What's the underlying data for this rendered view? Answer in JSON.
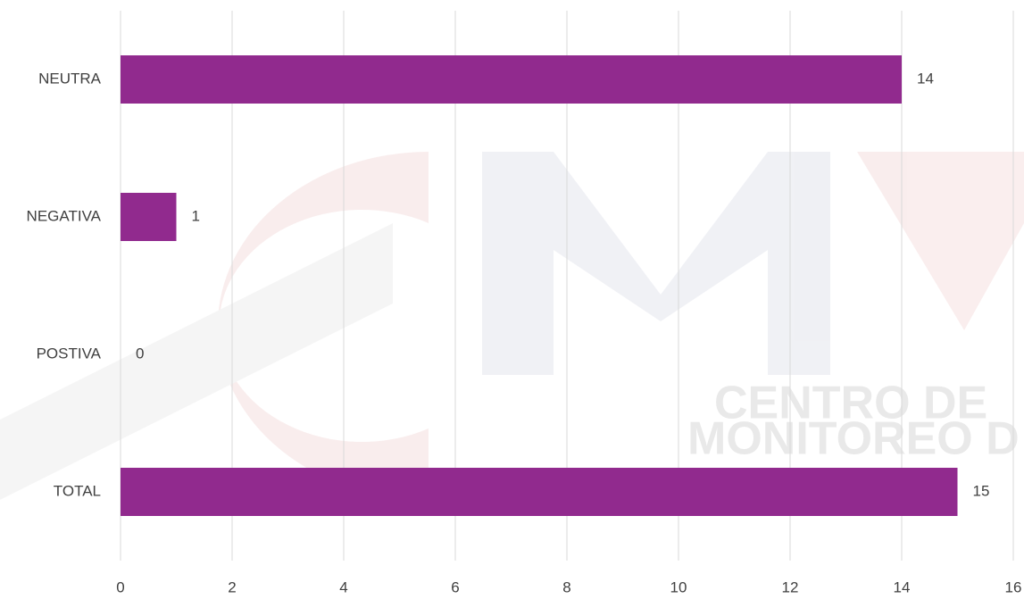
{
  "chart_data": {
    "type": "bar",
    "orientation": "horizontal",
    "categories": [
      "NEUTRA",
      "NEGATIVA",
      "POSTIVA",
      "TOTAL"
    ],
    "values": [
      14,
      1,
      0,
      15
    ],
    "color": "#912a8e",
    "xlim": [
      0,
      16
    ],
    "xticks": [
      0,
      2,
      4,
      6,
      8,
      10,
      12,
      14,
      16
    ],
    "grid": true,
    "watermark": [
      "CENTRO DE",
      "MONITOREO D"
    ]
  }
}
